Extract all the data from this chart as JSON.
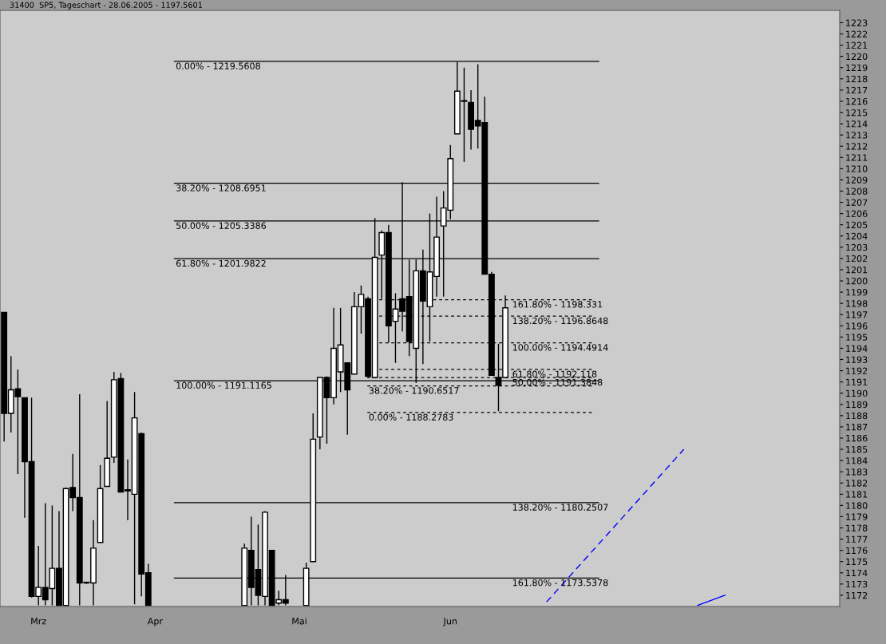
{
  "chart_data": {
    "type": "candlestick",
    "title": "31400  SP5, Tageschart - 28.06.2005 - 1197.5601",
    "categories": [
      null,
      null,
      null,
      null,
      null,
      "Mrz",
      null,
      null,
      null,
      null,
      null,
      null,
      null,
      null,
      null,
      null,
      null,
      null,
      null,
      null,
      null,
      null,
      "Apr",
      null,
      null,
      null,
      null,
      null,
      null,
      null,
      null,
      null,
      null,
      null,
      null,
      null,
      null,
      null,
      null,
      null,
      null,
      null,
      null,
      "Mai",
      null,
      null,
      null,
      null,
      null,
      null,
      null,
      null,
      null,
      null,
      null,
      null,
      null,
      null,
      null,
      null,
      null,
      null,
      null,
      null,
      null,
      "Jun",
      null,
      null,
      null,
      null,
      null,
      null,
      null,
      null,
      null,
      null,
      null,
      null,
      null,
      null,
      null,
      null,
      null,
      null,
      null,
      null,
      null,
      null,
      null,
      null,
      null,
      null,
      null,
      null,
      null,
      null,
      null,
      null,
      null,
      null,
      null,
      null,
      null,
      null,
      null,
      null,
      null,
      null,
      null,
      null,
      null,
      null,
      null,
      null,
      null,
      null,
      null,
      null,
      null,
      null,
      null,
      null
    ],
    "ohlc": [
      [
        1197.2,
        1197.2,
        1185.7,
        1188.2
      ],
      [
        1188.2,
        1193.3,
        1186.5,
        1190.3
      ],
      [
        1190.4,
        1192.1,
        1182.8,
        1189.7
      ],
      [
        1189.6,
        1189.6,
        1178.9,
        1183.9
      ],
      [
        1183.9,
        1189.6,
        1171.8,
        1171.9
      ],
      [
        1171.9,
        1176.4,
        1171.1,
        1172.7
      ],
      [
        1172.7,
        1180.2,
        1171.1,
        1171.6
      ],
      [
        1172.6,
        1180.0,
        1171.1,
        1174.4
      ],
      [
        1174.4,
        1179.5,
        1171.1,
        1171.1
      ],
      [
        1171.1,
        1181.6,
        1171.1,
        1181.5
      ],
      [
        1181.6,
        1184.6,
        1179.5,
        1180.7
      ],
      [
        1180.7,
        1189.9,
        1171.1,
        1173.1
      ],
      [
        1173.1,
        1173.2,
        1173.0,
        1173.1
      ],
      [
        1173.1,
        1178.7,
        1171.1,
        1176.2
      ],
      [
        1176.7,
        1183.6,
        1176.7,
        1181.5
      ],
      [
        1181.7,
        1189.3,
        1181.7,
        1184.2
      ],
      [
        1184.3,
        1191.9,
        1183.8,
        1191.2
      ],
      [
        1191.3,
        1191.8,
        1181.2,
        1181.2
      ],
      [
        1181.4,
        1184.1,
        1178.7,
        1181.3
      ],
      [
        1181.0,
        1190.1,
        1171.2,
        1187.8
      ],
      [
        1186.4,
        1186.5,
        1171.9,
        1173.9
      ],
      [
        1174.0,
        1174.8,
        1171.1,
        1171.1
      ],
      null,
      null,
      null,
      null,
      null,
      null,
      null,
      null,
      null,
      null,
      null,
      null,
      null,
      [
        1171.1,
        1176.6,
        1171.1,
        1176.2
      ],
      [
        1176.0,
        1179.0,
        1171.1,
        1172.7
      ],
      [
        1174.3,
        1178.3,
        1171.1,
        1172.0
      ],
      [
        1171.9,
        1179.5,
        1171.1,
        1179.4
      ],
      [
        1176.0,
        1176.0,
        1171.1,
        1171.1
      ],
      [
        1171.3,
        1172.4,
        1171.1,
        1171.6
      ],
      [
        1171.6,
        1173.8,
        1171.1,
        1171.3
      ],
      null,
      null,
      [
        1171.1,
        1174.9,
        1171.1,
        1174.4
      ],
      [
        1175.0,
        1188.2,
        1175.0,
        1185.9
      ],
      [
        1186.1,
        1191.4,
        1185.0,
        1191.4
      ],
      [
        1191.4,
        1191.5,
        1185.5,
        1189.6
      ],
      [
        1189.6,
        1197.6,
        1189.0,
        1194.0
      ],
      [
        1191.9,
        1197.6,
        1190.1,
        1194.3
      ],
      [
        1192.7,
        1192.7,
        1186.3,
        1190.3
      ],
      [
        1191.7,
        1199.0,
        1191.7,
        1197.7
      ],
      [
        1197.7,
        1199.6,
        1195.3,
        1198.8
      ],
      [
        1198.4,
        1198.6,
        1191.4,
        1191.5
      ],
      [
        1191.4,
        1205.6,
        1191.4,
        1202.1
      ],
      [
        1202.3,
        1204.5,
        1198.4,
        1204.3
      ],
      [
        1204.3,
        1205.0,
        1194.5,
        1196.0
      ],
      [
        1196.4,
        1198.9,
        1192.7,
        1197.5
      ],
      [
        1198.4,
        1208.8,
        1195.5,
        1197.3
      ],
      [
        1198.6,
        1201.9,
        1193.3,
        1194.6
      ],
      [
        1194.0,
        1201.9,
        1190.9,
        1200.9
      ],
      [
        1200.9,
        1202.8,
        1192.6,
        1198.2
      ],
      [
        1197.7,
        1206.0,
        1194.6,
        1200.8
      ],
      [
        1200.4,
        1207.5,
        1198.6,
        1203.9
      ],
      [
        1204.9,
        1208.0,
        1198.6,
        1206.5
      ],
      [
        1206.3,
        1212.1,
        1205.5,
        1210.9
      ],
      [
        1213.1,
        1219.5,
        1213.1,
        1216.9
      ],
      [
        1216.0,
        1219.0,
        1210.6,
        1216.0
      ],
      [
        1215.9,
        1217.0,
        1211.7,
        1213.5
      ],
      [
        1214.3,
        1219.3,
        1211.8,
        1213.8
      ],
      [
        1214.1,
        1216.4,
        1200.6,
        1200.6
      ],
      [
        1200.6,
        1200.8,
        1191.6,
        1191.6
      ],
      [
        1191.4,
        1194.4,
        1188.4,
        1190.7
      ],
      [
        1191.4,
        1198.7,
        1191.4,
        1197.6
      ],
      null,
      null,
      null,
      null,
      null,
      null,
      null,
      null,
      null,
      null,
      null,
      null,
      null,
      null,
      null,
      null,
      null,
      null,
      null,
      null,
      null,
      null,
      null,
      null,
      null,
      null,
      null,
      null,
      null,
      null,
      null,
      null,
      null,
      null,
      null,
      null,
      null,
      null,
      null,
      null,
      null,
      null,
      null,
      null,
      null,
      null,
      null,
      null
    ],
    "series": [
      {
        "type": "line",
        "color": "#0000ff",
        "line_style": "dashed",
        "values": [
          null,
          null,
          null,
          null,
          null,
          null,
          null,
          null,
          null,
          null,
          null,
          null,
          null,
          null,
          null,
          null,
          null,
          null,
          null,
          null,
          null,
          null,
          null,
          null,
          null,
          null,
          null,
          null,
          null,
          null,
          null,
          null,
          null,
          null,
          null,
          null,
          null,
          null,
          null,
          null,
          null,
          null,
          null,
          null,
          null,
          null,
          null,
          null,
          null,
          null,
          null,
          null,
          null,
          null,
          null,
          null,
          null,
          null,
          null,
          null,
          null,
          null,
          null,
          null,
          null,
          null,
          null,
          null,
          null,
          null,
          null,
          null,
          null,
          null,
          null,
          null,
          null,
          null,
          null,
          1171.4,
          null,
          null,
          null,
          null,
          null,
          null,
          null,
          null,
          null,
          null,
          null,
          null,
          null,
          null,
          null,
          null,
          null,
          null,
          null,
          1185.0,
          null,
          null,
          null,
          null,
          null,
          null,
          null,
          null,
          null,
          null,
          null,
          null,
          null,
          null,
          null,
          null,
          null,
          null,
          null,
          null,
          null,
          null
        ]
      },
      {
        "type": "line",
        "color": "#0000ff",
        "line_style": "solid",
        "values": [
          null,
          null,
          null,
          null,
          null,
          null,
          null,
          null,
          null,
          null,
          null,
          null,
          null,
          null,
          null,
          null,
          null,
          null,
          null,
          null,
          null,
          null,
          null,
          null,
          null,
          null,
          null,
          null,
          null,
          null,
          null,
          null,
          null,
          null,
          null,
          null,
          null,
          null,
          null,
          null,
          null,
          null,
          null,
          null,
          null,
          null,
          null,
          null,
          null,
          null,
          null,
          null,
          null,
          null,
          null,
          null,
          null,
          null,
          null,
          null,
          null,
          null,
          null,
          null,
          null,
          null,
          null,
          null,
          null,
          null,
          null,
          null,
          null,
          null,
          null,
          null,
          null,
          null,
          null,
          null,
          null,
          null,
          null,
          null,
          null,
          null,
          null,
          null,
          null,
          null,
          null,
          null,
          null,
          null,
          null,
          null,
          null,
          null,
          null,
          null,
          null,
          1171.1,
          null,
          null,
          null,
          1172.0,
          null,
          null,
          null,
          null,
          null,
          null,
          null,
          null,
          null,
          null,
          null,
          null,
          null,
          null,
          null,
          null
        ]
      }
    ],
    "ref_lines": [
      {
        "axis": "y",
        "value": 1219.5608,
        "color": "#000000",
        "line_style": "solid"
      },
      {
        "axis": "y",
        "value": 1208.6951,
        "color": "#000000",
        "line_style": "solid"
      },
      {
        "axis": "y",
        "value": 1205.3386,
        "color": "#000000",
        "line_style": "solid"
      },
      {
        "axis": "y",
        "value": 1201.9822,
        "color": "#000000",
        "line_style": "solid"
      },
      {
        "axis": "y",
        "value": 1191.1165,
        "color": "#000000",
        "line_style": "solid"
      },
      {
        "axis": "y",
        "value": 1180.2507,
        "color": "#000000",
        "line_style": "solid"
      },
      {
        "axis": "y",
        "value": 1173.5378,
        "color": "#000000",
        "line_style": "solid"
      },
      {
        "axis": "y",
        "value": 1198.331,
        "color": "#000000",
        "line_style": "dashed"
      },
      {
        "axis": "y",
        "value": 1196.8648,
        "color": "#000000",
        "line_style": "dashed"
      },
      {
        "axis": "y",
        "value": 1194.4914,
        "color": "#000000",
        "line_style": "dashed"
      },
      {
        "axis": "y",
        "value": 1192.118,
        "color": "#000000",
        "line_style": "dashed"
      },
      {
        "axis": "y",
        "value": 1191.3848,
        "color": "#000000",
        "line_style": "dashed"
      },
      {
        "axis": "y",
        "value": 1190.6517,
        "color": "#000000",
        "line_style": "dashed"
      },
      {
        "axis": "y",
        "value": 1188.2783,
        "color": "#000000",
        "line_style": "dashed"
      }
    ],
    "annotations": [
      {
        "text": "0.00% - 1219.5608",
        "y": 1219.5608
      },
      {
        "text": "38.20% - 1208.6951",
        "y": 1208.6951
      },
      {
        "text": "50.00% - 1205.3386",
        "y": 1205.3386
      },
      {
        "text": "61.80% - 1201.9822",
        "y": 1201.9822
      },
      {
        "text": "100.00% - 1191.1165",
        "y": 1191.1165
      },
      {
        "text": "138.20% - 1180.2507",
        "y": 1180.2507
      },
      {
        "text": "161.80% - 1173.5378",
        "y": 1173.5378
      },
      {
        "text": "161.80% - 1198.331",
        "y": 1198.331
      },
      {
        "text": "138.20% - 1196.8648",
        "y": 1196.8648
      },
      {
        "text": "100.00% - 1194.4914",
        "y": 1194.4914
      },
      {
        "text": "61.80% - 1192.118",
        "y": 1192.118
      },
      {
        "text": "50.00% - 1191.3848",
        "y": 1191.3848
      },
      {
        "text": "38.20% - 1190.6517",
        "y": 1190.6517
      },
      {
        "text": "0.00% - 1188.2783",
        "y": 1188.2783
      }
    ],
    "ylim": [
      1171,
      1224.1
    ],
    "yticks": [
      1172,
      1173,
      1174,
      1175,
      1176,
      1177,
      1178,
      1179,
      1180,
      1181,
      1182,
      1183,
      1184,
      1185,
      1186,
      1187,
      1188,
      1189,
      1190,
      1191,
      1192,
      1193,
      1194,
      1195,
      1196,
      1197,
      1198,
      1199,
      1200,
      1201,
      1202,
      1203,
      1204,
      1205,
      1206,
      1207,
      1208,
      1209,
      1210,
      1211,
      1212,
      1213,
      1214,
      1215,
      1216,
      1217,
      1218,
      1219,
      1220,
      1221,
      1222,
      1223
    ],
    "grid": false
  }
}
